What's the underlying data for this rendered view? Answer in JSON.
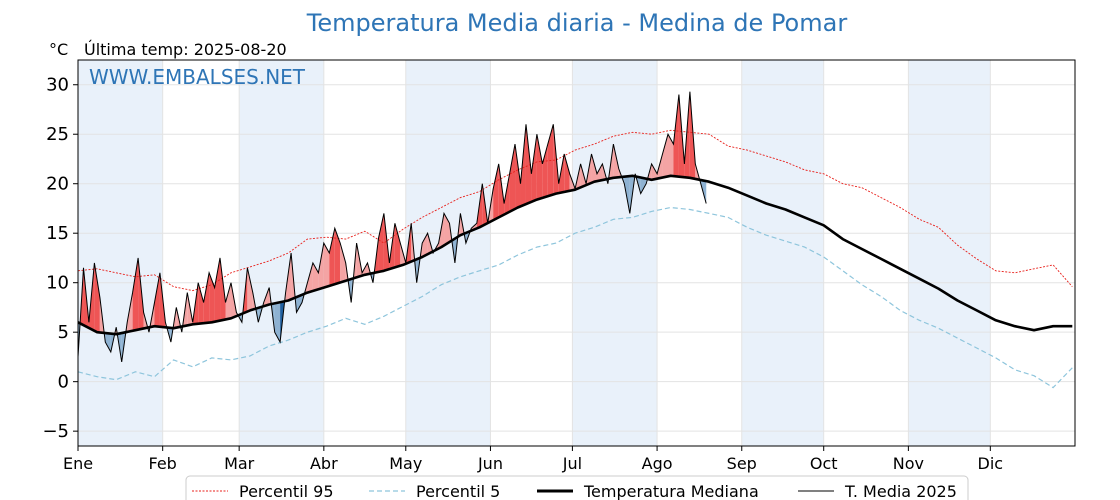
{
  "chart_data": {
    "type": "line",
    "title": "Temperatura Media diaria - Medina de Pomar",
    "unit": "°C",
    "last_temp_label": "Última temp: 2025-08-20",
    "watermark": "WWW.EMBALSES.NET",
    "ylim": [
      -6.5,
      32.5
    ],
    "yticks": [
      -5,
      0,
      5,
      10,
      15,
      20,
      25,
      30
    ],
    "xlim": [
      1,
      366
    ],
    "months": [
      {
        "label": "Ene",
        "day": 1
      },
      {
        "label": "Feb",
        "day": 32
      },
      {
        "label": "Mar",
        "day": 60
      },
      {
        "label": "Abr",
        "day": 91
      },
      {
        "label": "May",
        "day": 121
      },
      {
        "label": "Jun",
        "day": 152
      },
      {
        "label": "Jul",
        "day": 182
      },
      {
        "label": "Ago",
        "day": 213
      },
      {
        "label": "Sep",
        "day": 244
      },
      {
        "label": "Oct",
        "day": 274
      },
      {
        "label": "Nov",
        "day": 305
      },
      {
        "label": "Dic",
        "day": 335
      }
    ],
    "grid": true,
    "legend_position": "bottom",
    "colors": {
      "p95": "#e8201b",
      "p5": "#8ec5dc",
      "median": "#000000",
      "current": "#000000",
      "above": "#f4a4a4",
      "above_strong": "#ee5555",
      "below": "#8eb2d2",
      "below_strong": "#2060a0",
      "band": "#e9f1fa"
    },
    "series": [
      {
        "name": "Percentil 95",
        "key": "p95",
        "x": [
          1,
          8,
          15,
          22,
          29,
          36,
          43,
          50,
          57,
          64,
          71,
          78,
          85,
          92,
          99,
          106,
          113,
          120,
          127,
          134,
          141,
          148,
          155,
          162,
          169,
          176,
          183,
          190,
          197,
          204,
          211,
          218,
          225,
          232,
          239,
          246,
          253,
          260,
          267,
          274,
          281,
          288,
          295,
          302,
          309,
          316,
          323,
          330,
          337,
          344,
          351,
          358,
          365
        ],
        "y": [
          11.2,
          11.4,
          11.0,
          10.6,
          10.8,
          9.6,
          9.2,
          9.8,
          11.0,
          11.6,
          12.2,
          13.0,
          14.4,
          14.6,
          14.4,
          15.2,
          14.0,
          15.4,
          16.6,
          17.6,
          18.6,
          19.2,
          20.4,
          21.4,
          22.2,
          22.4,
          23.4,
          24.0,
          24.8,
          25.2,
          25.0,
          25.4,
          25.2,
          25.0,
          23.8,
          23.4,
          22.8,
          22.2,
          21.4,
          21.0,
          20.0,
          19.6,
          18.6,
          17.6,
          16.4,
          15.6,
          13.8,
          12.4,
          11.2,
          11.0,
          11.4,
          11.8,
          9.6
        ]
      },
      {
        "name": "Percentil 5",
        "key": "p5",
        "x": [
          1,
          8,
          15,
          22,
          29,
          36,
          43,
          50,
          57,
          64,
          71,
          78,
          85,
          92,
          99,
          106,
          113,
          120,
          127,
          134,
          141,
          148,
          155,
          162,
          169,
          176,
          183,
          190,
          197,
          204,
          211,
          218,
          225,
          232,
          239,
          246,
          253,
          260,
          267,
          274,
          281,
          288,
          295,
          302,
          309,
          316,
          323,
          330,
          337,
          344,
          351,
          358,
          365
        ],
        "y": [
          1.0,
          0.5,
          0.2,
          1.0,
          0.5,
          2.2,
          1.5,
          2.4,
          2.2,
          2.6,
          3.6,
          4.2,
          5.0,
          5.6,
          6.4,
          5.8,
          6.6,
          7.6,
          8.6,
          9.8,
          10.6,
          11.2,
          11.8,
          12.8,
          13.6,
          14.0,
          15.0,
          15.6,
          16.4,
          16.6,
          17.2,
          17.6,
          17.4,
          17.0,
          16.6,
          15.6,
          14.8,
          14.2,
          13.6,
          12.6,
          11.2,
          9.8,
          8.6,
          7.2,
          6.2,
          5.4,
          4.4,
          3.4,
          2.4,
          1.2,
          0.6,
          -0.6,
          1.4
        ]
      },
      {
        "name": "Temperatura Mediana",
        "key": "median",
        "x": [
          1,
          8,
          15,
          22,
          29,
          36,
          43,
          50,
          57,
          64,
          71,
          78,
          85,
          92,
          99,
          106,
          113,
          120,
          127,
          134,
          141,
          148,
          155,
          162,
          169,
          176,
          183,
          190,
          197,
          204,
          211,
          218,
          225,
          232,
          239,
          246,
          253,
          260,
          267,
          274,
          281,
          288,
          295,
          302,
          309,
          316,
          323,
          330,
          337,
          344,
          351,
          358,
          365
        ],
        "y": [
          6.0,
          5.0,
          4.8,
          5.2,
          5.6,
          5.4,
          5.8,
          6.0,
          6.4,
          7.2,
          7.8,
          8.2,
          9.0,
          9.6,
          10.2,
          10.8,
          11.2,
          11.8,
          12.6,
          13.6,
          14.8,
          15.6,
          16.6,
          17.6,
          18.4,
          19.0,
          19.4,
          20.2,
          20.6,
          20.8,
          20.4,
          20.8,
          20.6,
          20.2,
          19.6,
          18.8,
          18.0,
          17.4,
          16.6,
          15.8,
          14.4,
          13.4,
          12.4,
          11.4,
          10.4,
          9.4,
          8.2,
          7.2,
          6.2,
          5.6,
          5.2,
          5.6,
          5.6
        ]
      },
      {
        "name": "T. Media 2025",
        "key": "current",
        "x": [
          1,
          3,
          5,
          7,
          9,
          11,
          13,
          15,
          17,
          19,
          21,
          23,
          25,
          27,
          29,
          31,
          33,
          35,
          37,
          39,
          41,
          43,
          45,
          47,
          49,
          51,
          53,
          55,
          57,
          59,
          61,
          63,
          65,
          67,
          69,
          71,
          73,
          75,
          77,
          79,
          81,
          83,
          85,
          87,
          89,
          91,
          93,
          95,
          97,
          99,
          101,
          103,
          105,
          107,
          109,
          111,
          113,
          115,
          117,
          119,
          121,
          123,
          125,
          127,
          129,
          131,
          133,
          135,
          137,
          139,
          141,
          143,
          145,
          147,
          149,
          151,
          153,
          155,
          157,
          159,
          161,
          163,
          165,
          167,
          169,
          171,
          173,
          175,
          177,
          179,
          181,
          183,
          185,
          187,
          189,
          191,
          193,
          195,
          197,
          199,
          201,
          203,
          205,
          207,
          209,
          211,
          213,
          215,
          217,
          219,
          221,
          223,
          225,
          227,
          229,
          231
        ],
        "y": [
          2.5,
          11.5,
          6.0,
          12.0,
          8.5,
          4.0,
          3.0,
          5.5,
          2.0,
          6.0,
          9.0,
          12.5,
          7.0,
          5.0,
          8.0,
          11.0,
          6.0,
          4.0,
          7.5,
          5.0,
          9.0,
          6.0,
          10.0,
          8.0,
          11.0,
          9.5,
          12.5,
          8.0,
          10.0,
          7.0,
          6.0,
          11.5,
          9.0,
          6.0,
          8.0,
          9.5,
          5.0,
          4.0,
          9.0,
          13.0,
          7.0,
          8.0,
          10.0,
          12.0,
          11.0,
          14.0,
          13.0,
          15.5,
          14.0,
          12.0,
          8.0,
          14.0,
          11.0,
          12.0,
          10.0,
          14.5,
          17.0,
          12.0,
          16.0,
          14.0,
          12.0,
          16.0,
          10.0,
          14.0,
          15.0,
          13.0,
          14.0,
          17.0,
          16.0,
          12.0,
          17.0,
          14.0,
          15.5,
          16.0,
          20.0,
          16.0,
          19.5,
          22.0,
          18.0,
          21.0,
          24.0,
          20.0,
          26.0,
          21.0,
          25.0,
          22.0,
          24.0,
          26.0,
          20.0,
          23.0,
          21.0,
          19.5,
          22.0,
          20.0,
          23.0,
          21.0,
          22.0,
          20.0,
          24.0,
          21.5,
          20.0,
          17.0,
          21.0,
          19.0,
          20.0,
          22.0,
          21.0,
          23.0,
          25.0,
          24.0,
          29.0,
          22.0,
          29.3,
          22.0,
          20.0,
          18.0
        ]
      }
    ],
    "legend": [
      "Percentil 95",
      "Percentil 5",
      "Temperatura Mediana",
      "T. Media 2025"
    ]
  }
}
